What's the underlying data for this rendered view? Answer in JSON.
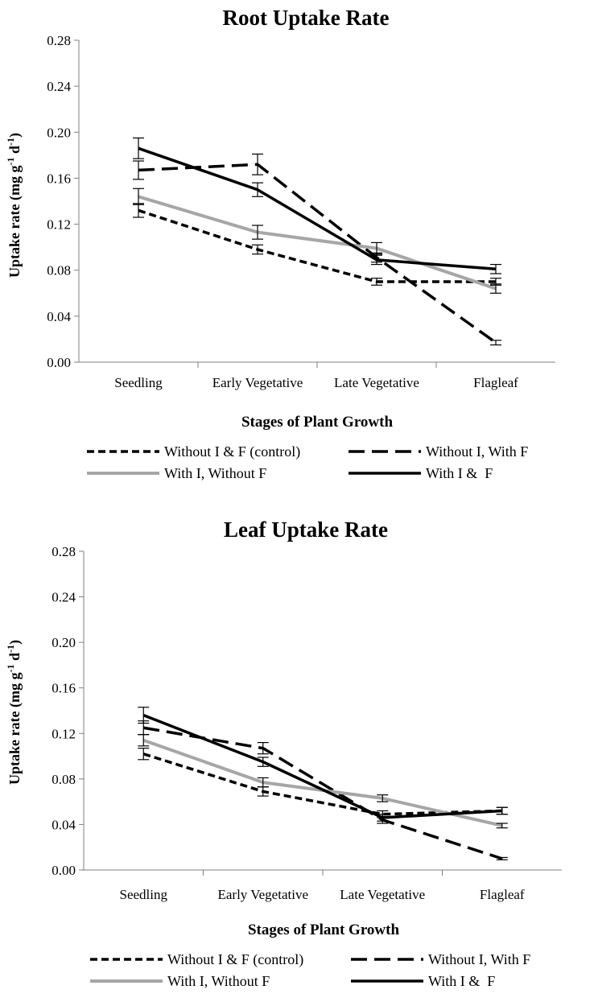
{
  "chart_data": [
    {
      "type": "line",
      "title": "Root Uptake Rate",
      "xlabel": "Stages of Plant Growth",
      "ylabel": "Uptake rate (mg g",
      "ylabel_sup1": "-1",
      "ylabel_mid": " d",
      "ylabel_sup2": "-1",
      "ylabel_end": ")",
      "categories": [
        "Seedling",
        "Early Vegetative",
        "Late Vegetative",
        "Flagleaf"
      ],
      "ylim": [
        0,
        0.28
      ],
      "yticks": [
        "0.00",
        "0.04",
        "0.08",
        "0.12",
        "0.16",
        "0.20",
        "0.24",
        "0.28"
      ],
      "grid": false,
      "legend_position": "bottom",
      "series": [
        {
          "name": "Without I & F (control)",
          "values": [
            0.132,
            0.098,
            0.07,
            0.07
          ],
          "errors": [
            0.006,
            0.004,
            0.003,
            0.003
          ],
          "color": "#000000",
          "dash": "short"
        },
        {
          "name": "Without I, With F",
          "values": [
            0.167,
            0.172,
            0.091,
            0.017
          ],
          "errors": [
            0.008,
            0.009,
            0.004,
            0.002
          ],
          "color": "#000000",
          "dash": "long"
        },
        {
          "name": "With I, Without F",
          "values": [
            0.144,
            0.113,
            0.099,
            0.064
          ],
          "errors": [
            0.007,
            0.006,
            0.005,
            0.004
          ],
          "color": "#a6a6a6",
          "dash": "solid"
        },
        {
          "name": "With I &  F",
          "values": [
            0.186,
            0.15,
            0.089,
            0.081
          ],
          "errors": [
            0.009,
            0.006,
            0.004,
            0.004
          ],
          "color": "#000000",
          "dash": "solid"
        }
      ]
    },
    {
      "type": "line",
      "title": "Leaf Uptake Rate",
      "xlabel": "Stages of Plant Growth",
      "ylabel": "Uptake rate (mg g",
      "ylabel_sup1": "-1",
      "ylabel_mid": " d",
      "ylabel_sup2": "-1",
      "ylabel_end": ")",
      "categories": [
        "Seedling",
        "Early Vegetative",
        "Late Vegetative",
        "Flagleaf"
      ],
      "ylim": [
        0,
        0.28
      ],
      "yticks": [
        "0.00",
        "0.04",
        "0.08",
        "0.12",
        "0.16",
        "0.20",
        "0.24",
        "0.28"
      ],
      "grid": false,
      "legend_position": "bottom",
      "series": [
        {
          "name": "Without I & F (control)",
          "values": [
            0.102,
            0.069,
            0.049,
            0.052
          ],
          "errors": [
            0.005,
            0.004,
            0.003,
            0.003
          ],
          "color": "#000000",
          "dash": "short"
        },
        {
          "name": "Without I, With F",
          "values": [
            0.125,
            0.107,
            0.044,
            0.01
          ],
          "errors": [
            0.006,
            0.005,
            0.003,
            0.001
          ],
          "color": "#000000",
          "dash": "long"
        },
        {
          "name": "With I, Without F",
          "values": [
            0.114,
            0.077,
            0.063,
            0.039
          ],
          "errors": [
            0.005,
            0.004,
            0.003,
            0.002
          ],
          "color": "#a6a6a6",
          "dash": "solid"
        },
        {
          "name": "With I &  F",
          "values": [
            0.136,
            0.095,
            0.046,
            0.052
          ],
          "errors": [
            0.007,
            0.004,
            0.003,
            0.003
          ],
          "color": "#000000",
          "dash": "solid"
        }
      ]
    }
  ]
}
